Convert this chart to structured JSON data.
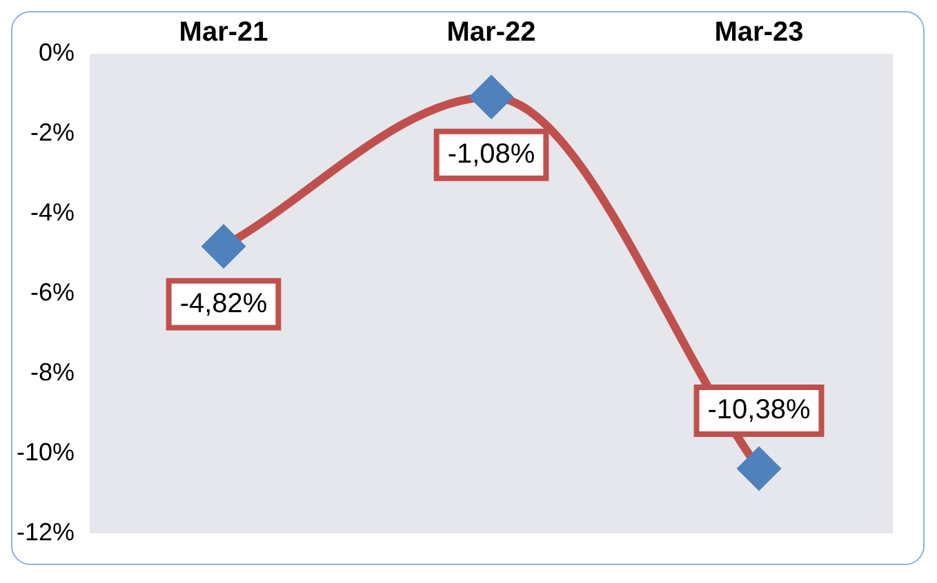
{
  "chart_data": {
    "type": "line",
    "categories": [
      "Mar-21",
      "Mar-22",
      "Mar-23"
    ],
    "series": [
      {
        "color": "#c0504d",
        "values": [
          -4.82,
          -1.08,
          -10.38
        ],
        "value_labels": [
          "-4,82%",
          "-1,08%",
          "-10,38%"
        ]
      }
    ],
    "ylim": [
      -12,
      0
    ],
    "yticks": [
      {
        "value": 0,
        "label": "0%"
      },
      {
        "value": -2,
        "label": "-2%"
      },
      {
        "value": -4,
        "label": "-4%"
      },
      {
        "value": -6,
        "label": "-6%"
      },
      {
        "value": -8,
        "label": "-8%"
      },
      {
        "value": -10,
        "label": "-10%"
      },
      {
        "value": -12,
        "label": "-12%"
      }
    ],
    "grid": false,
    "legend": false,
    "marker": "diamond",
    "line_style": "solid"
  }
}
